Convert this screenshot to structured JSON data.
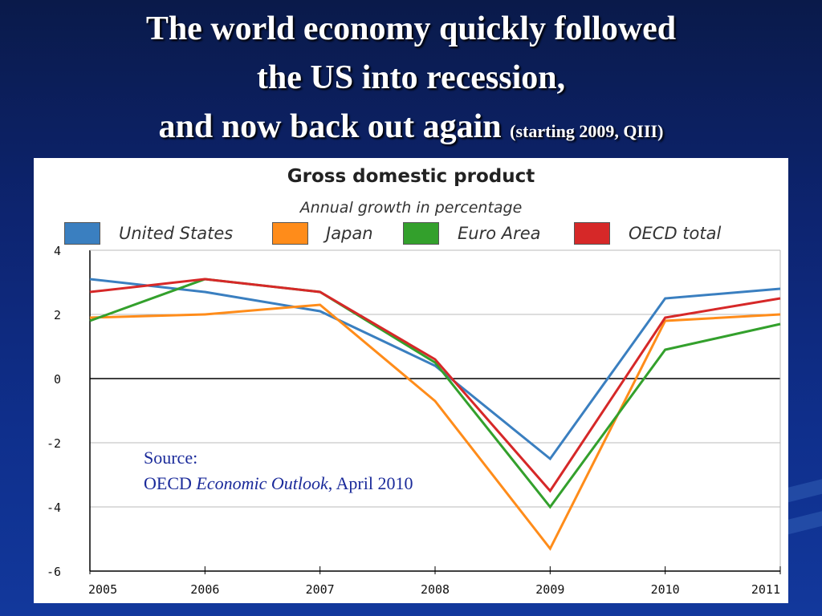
{
  "slide": {
    "title_line1": "The world economy quickly followed",
    "title_line2": "the US into recession,",
    "title_line3": "and now back out again",
    "title_note": "(starting 2009, QIII)"
  },
  "source": {
    "label": "Source:",
    "org": "OECD",
    "publication": "Economic Outlook",
    "date": ", April 2010"
  },
  "chart_data": {
    "type": "line",
    "title": "Gross domestic product",
    "subtitle": "Annual growth in percentage",
    "xlabel": "",
    "ylabel": "",
    "x": [
      "2005",
      "2006",
      "2007",
      "2008",
      "2009",
      "2010",
      "2011"
    ],
    "ylim": [
      -6,
      4
    ],
    "yticks": [
      4,
      2,
      0,
      -2,
      -4,
      -6
    ],
    "grid": true,
    "legend_position": "top",
    "series": [
      {
        "name": "United States",
        "color": "#3a7fc0",
        "values": [
          3.1,
          2.7,
          2.1,
          0.4,
          -2.5,
          2.5,
          2.8
        ]
      },
      {
        "name": "Japan",
        "color": "#ff8c1a",
        "values": [
          1.9,
          2.0,
          2.3,
          -0.7,
          -5.3,
          1.8,
          2.0
        ]
      },
      {
        "name": "Euro Area",
        "color": "#33a02c",
        "values": [
          1.8,
          3.1,
          2.7,
          0.5,
          -4.0,
          0.9,
          1.7
        ]
      },
      {
        "name": "OECD total",
        "color": "#d62828",
        "values": [
          2.7,
          3.1,
          2.7,
          0.6,
          -3.5,
          1.9,
          2.5
        ]
      }
    ]
  }
}
